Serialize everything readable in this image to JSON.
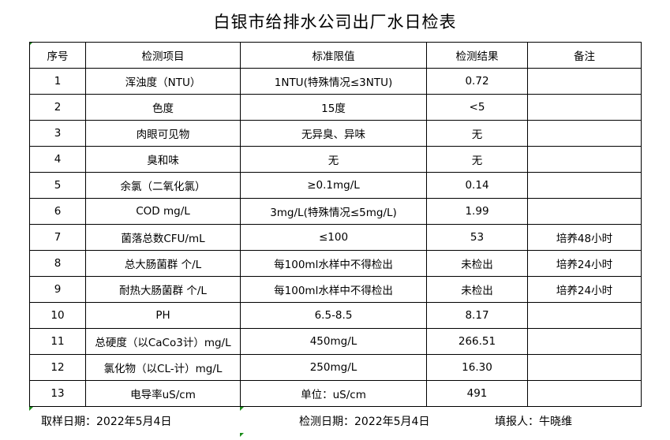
{
  "title": "白银市给排水公司出厂水日检表",
  "headers": [
    "序号",
    "检测项目",
    "标准限值",
    "检测结果",
    "备注"
  ],
  "rows": [
    [
      "1",
      "浑浊度（NTU）",
      "1NTU(特殊情况≤3NTU)",
      "0.72",
      ""
    ],
    [
      "2",
      "色度",
      "15度",
      "<5",
      ""
    ],
    [
      "3",
      "肉眼可见物",
      "无异臭、异味",
      "无",
      ""
    ],
    [
      "4",
      "臭和味",
      "无",
      "无",
      ""
    ],
    [
      "5",
      "余氯（二氧化氯）",
      "≥0.1mg/L",
      "0.14",
      ""
    ],
    [
      "6",
      "COD          mg/L",
      "3mg/L(特殊情况≤5mg/L)",
      "1.99",
      ""
    ],
    [
      "7",
      "菌落总数CFU/mL",
      "≤100",
      "53",
      "培养48小时"
    ],
    [
      "8",
      "总大肠菌群 个/L",
      "每100ml水样中不得检出",
      "未检出",
      "培养24小时"
    ],
    [
      "9",
      "耐热大肠菌群 个/L",
      "每100ml水样中不得检出",
      "未检出",
      "培养24小时"
    ],
    [
      "10",
      "PH",
      "6.5-8.5",
      "8.17",
      ""
    ],
    [
      "11",
      "总硬度（以CaCo3计）mg/L",
      "450mg/L",
      "266.51",
      ""
    ],
    [
      "12",
      "氯化物（以CL-计）mg/L",
      "250mg/L",
      "16.30",
      ""
    ],
    [
      "13",
      "电导率uS/cm",
      "单位：uS/cm",
      "491",
      ""
    ]
  ],
  "footer": {
    "sampling_date": "取样日期：2022年5月4日",
    "test_date": "检测日期：2022年5月4日",
    "reporter": "填报人：牛晓维"
  }
}
